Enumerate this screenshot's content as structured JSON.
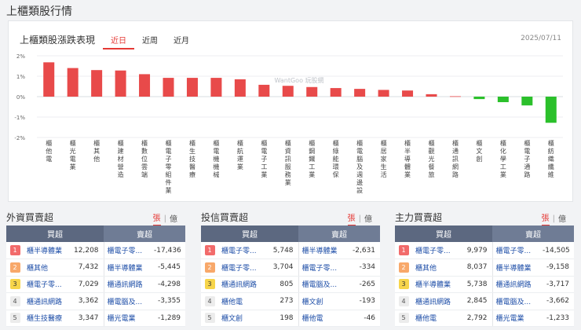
{
  "page": {
    "title": "上櫃類股行情"
  },
  "chart_panel": {
    "title": "上櫃類股漲跌表現",
    "tabs": [
      {
        "label": "近日",
        "active": true
      },
      {
        "label": "近周",
        "active": false
      },
      {
        "label": "近月",
        "active": false
      }
    ],
    "date": "2025/07/11",
    "watermark": "WantGoo 玩股網"
  },
  "chart_data": {
    "type": "bar",
    "ylim": [
      -2,
      2
    ],
    "yticks": [
      "2%",
      "1%",
      "0%",
      "-1%",
      "-2%"
    ],
    "ytick_values": [
      2,
      1,
      0,
      -1,
      -2
    ],
    "grid": true,
    "colors": {
      "up": "#e84a4a",
      "down": "#2bc02b"
    },
    "categories": [
      "櫃他電",
      "櫃光電業",
      "櫃其他",
      "櫃建材營造",
      "櫃數位雲端",
      "櫃電子零組件業",
      "櫃生技醫療",
      "櫃電機機械",
      "櫃航運業",
      "櫃電子工業",
      "櫃資訊服務業",
      "櫃鋼鐵工業",
      "櫃綠能環保",
      "櫃電腦及週邊設",
      "櫃居家生活",
      "櫃半導體業",
      "櫃觀光餐旅",
      "櫃通訊網路",
      "櫃文創",
      "櫃化學工業",
      "櫃電子通路",
      "櫃紡織纖維"
    ],
    "values": [
      1.68,
      1.4,
      1.3,
      1.28,
      1.1,
      0.92,
      0.92,
      0.92,
      0.85,
      0.58,
      0.53,
      0.47,
      0.42,
      0.38,
      0.33,
      0.3,
      0.12,
      0.02,
      -0.12,
      -0.27,
      -0.43,
      -1.28
    ]
  },
  "panels": [
    {
      "title": "外資買賣超",
      "units": [
        "張",
        "億"
      ],
      "active_unit": "張",
      "buy_header": "買超",
      "sell_header": "賣超",
      "rows": [
        {
          "rank": "1",
          "buy_name": "櫃半導體業",
          "buy_value": "12,208",
          "sell_name": "櫃電子零...",
          "sell_value": "-17,436"
        },
        {
          "rank": "2",
          "buy_name": "櫃其他",
          "buy_value": "7,432",
          "sell_name": "櫃半導體業",
          "sell_value": "-5,445"
        },
        {
          "rank": "3",
          "buy_name": "櫃電子零...",
          "buy_value": "7,029",
          "sell_name": "櫃通訊網路",
          "sell_value": "-4,298"
        },
        {
          "rank": "4",
          "buy_name": "櫃通訊網路",
          "buy_value": "3,362",
          "sell_name": "櫃電腦及...",
          "sell_value": "-3,355"
        },
        {
          "rank": "5",
          "buy_name": "櫃生技醫療",
          "buy_value": "3,347",
          "sell_name": "櫃光電業",
          "sell_value": "-1,289"
        }
      ]
    },
    {
      "title": "投信買賣超",
      "units": [
        "張",
        "億"
      ],
      "active_unit": "張",
      "buy_header": "買超",
      "sell_header": "賣超",
      "rows": [
        {
          "rank": "1",
          "buy_name": "櫃電子零...",
          "buy_value": "5,748",
          "sell_name": "櫃半導體業",
          "sell_value": "-2,631"
        },
        {
          "rank": "2",
          "buy_name": "櫃電子零...",
          "buy_value": "3,704",
          "sell_name": "櫃電子零...",
          "sell_value": "-334"
        },
        {
          "rank": "3",
          "buy_name": "櫃通訊網路",
          "buy_value": "805",
          "sell_name": "櫃電腦及...",
          "sell_value": "-265"
        },
        {
          "rank": "4",
          "buy_name": "櫃他電",
          "buy_value": "273",
          "sell_name": "櫃文創",
          "sell_value": "-193"
        },
        {
          "rank": "5",
          "buy_name": "櫃文創",
          "buy_value": "198",
          "sell_name": "櫃他電",
          "sell_value": "-46"
        }
      ]
    },
    {
      "title": "主力買賣超",
      "units": [
        "張",
        "億"
      ],
      "active_unit": "張",
      "buy_header": "買超",
      "sell_header": "賣超",
      "rows": [
        {
          "rank": "1",
          "buy_name": "櫃電子零...",
          "buy_value": "9,979",
          "sell_name": "櫃電子零...",
          "sell_value": "-14,505"
        },
        {
          "rank": "2",
          "buy_name": "櫃其他",
          "buy_value": "8,037",
          "sell_name": "櫃半導體業",
          "sell_value": "-9,158"
        },
        {
          "rank": "3",
          "buy_name": "櫃半導體業",
          "buy_value": "5,738",
          "sell_name": "櫃通訊網路",
          "sell_value": "-3,717"
        },
        {
          "rank": "4",
          "buy_name": "櫃通訊網路",
          "buy_value": "2,845",
          "sell_name": "櫃電腦及...",
          "sell_value": "-3,662"
        },
        {
          "rank": "5",
          "buy_name": "櫃他電",
          "buy_value": "2,792",
          "sell_name": "櫃光電業",
          "sell_value": "-1,233"
        }
      ]
    }
  ]
}
